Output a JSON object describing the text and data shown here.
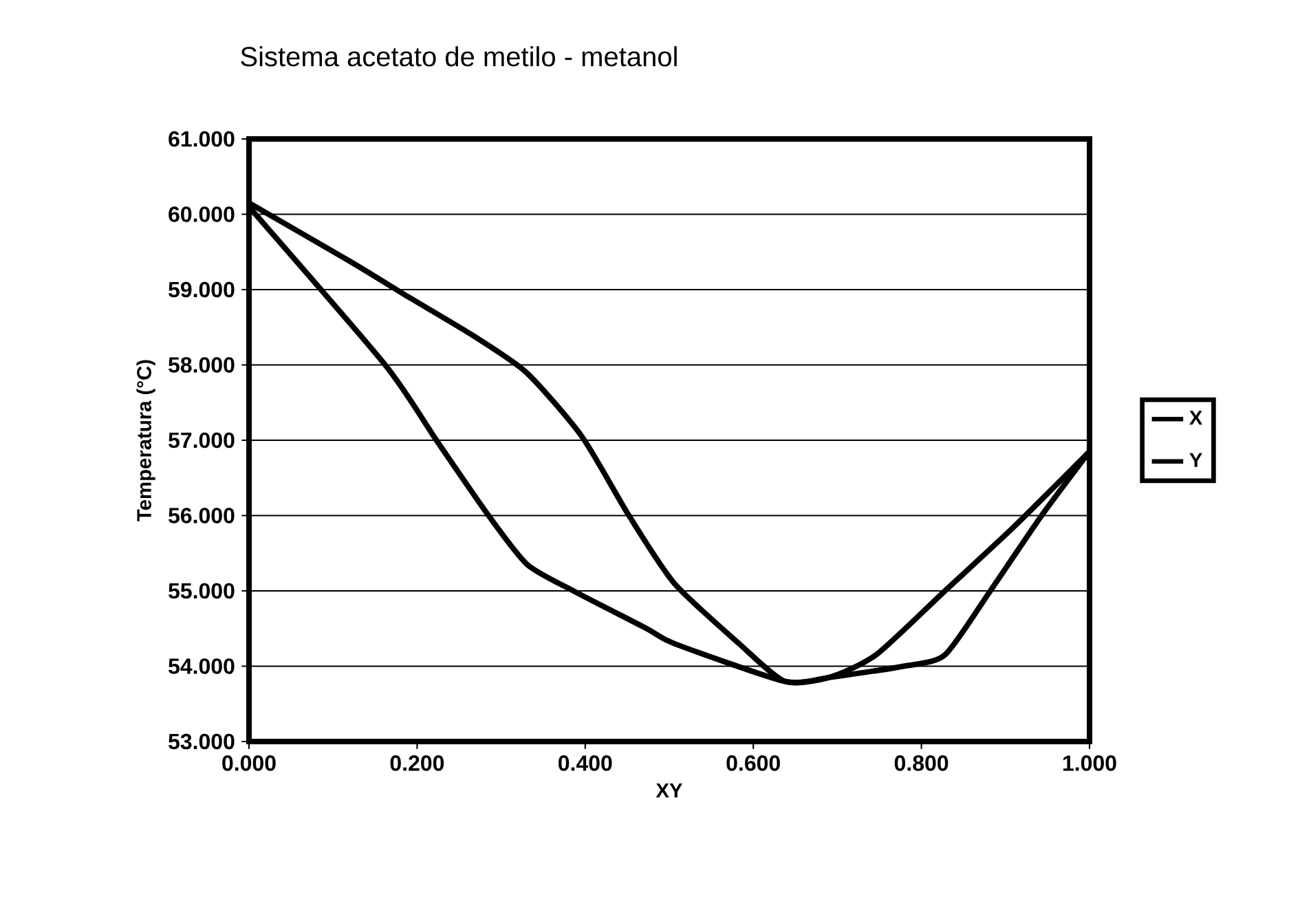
{
  "chart_data": {
    "type": "line",
    "title": "Sistema acetato de metilo - metanol",
    "xlabel": "XY",
    "ylabel": "Temperatura (°C)",
    "xlim": [
      0,
      1
    ],
    "ylim": [
      53,
      61
    ],
    "xticks": [
      {
        "value": 0,
        "label": "0.000"
      },
      {
        "value": 0.2,
        "label": "0.200"
      },
      {
        "value": 0.4,
        "label": "0.400"
      },
      {
        "value": 0.6,
        "label": "0.600"
      },
      {
        "value": 0.8,
        "label": "0.800"
      },
      {
        "value": 1,
        "label": "1.000"
      }
    ],
    "yticks": [
      {
        "value": 53,
        "label": "53.000"
      },
      {
        "value": 54,
        "label": "54.000"
      },
      {
        "value": 55,
        "label": "55.000"
      },
      {
        "value": 56,
        "label": "56.000"
      },
      {
        "value": 57,
        "label": "57.000"
      },
      {
        "value": 58,
        "label": "58.000"
      },
      {
        "value": 59,
        "label": "59.000"
      },
      {
        "value": 60,
        "label": "60.000"
      },
      {
        "value": 61,
        "label": "61.000"
      }
    ],
    "grid": "y",
    "legend": "right",
    "marker": "none",
    "line_style": "solid",
    "series": [
      {
        "name": "X",
        "color": "#000000",
        "x": [
          0,
          0.162,
          0.223,
          0.285,
          0.331,
          0.386,
          0.473,
          0.506,
          0.637,
          0.69,
          0.779,
          0.828,
          0.882,
          0.943,
          1
        ],
        "values": [
          60.1,
          58.0,
          57.0,
          56.0,
          55.35,
          55.0,
          54.5,
          54.3,
          53.8,
          53.85,
          54.0,
          54.15,
          55.0,
          56.0,
          56.85
        ]
      },
      {
        "name": "Y",
        "color": "#000000",
        "x": [
          0,
          0.124,
          0.19,
          0.265,
          0.33,
          0.396,
          0.452,
          0.506,
          0.583,
          0.637,
          0.69,
          0.746,
          0.828,
          0.91,
          1
        ],
        "values": [
          60.15,
          59.35,
          58.9,
          58.4,
          57.9,
          57.05,
          56.0,
          55.1,
          54.3,
          53.8,
          53.85,
          54.15,
          55.0,
          55.85,
          56.85
        ]
      }
    ]
  }
}
